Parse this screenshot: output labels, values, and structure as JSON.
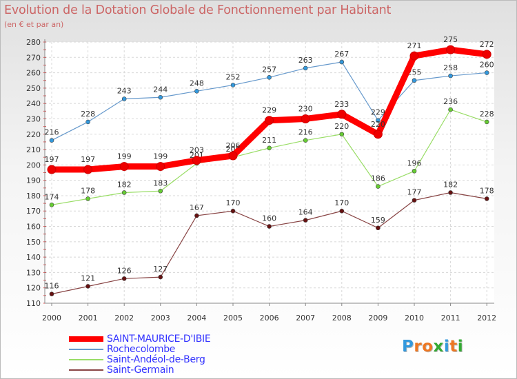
{
  "title": "Evolution de la Dotation Globale de Fonctionnement par Habitant",
  "subtitle": "(en € et par an)",
  "logo": {
    "chars": [
      "P",
      "r",
      "o",
      "x",
      "i",
      "t",
      "i"
    ],
    "colors": [
      "#3399dd",
      "#ee7722",
      "#ee7722",
      "#33aa33",
      "#3399dd",
      "#ee7722",
      "#33aa33"
    ]
  },
  "chart_data": {
    "type": "line",
    "title": "Evolution de la Dotation Globale de Fonctionnement par Habitant",
    "subtitle": "(en € et par an)",
    "xlabel": "",
    "ylabel": "",
    "categories": [
      "2000",
      "2001",
      "2002",
      "2003",
      "2004",
      "2005",
      "2006",
      "2007",
      "2008",
      "2009",
      "2010",
      "2011",
      "2012"
    ],
    "ylim": [
      110,
      280
    ],
    "yticks": [
      110,
      120,
      130,
      140,
      150,
      160,
      170,
      180,
      190,
      200,
      210,
      220,
      230,
      240,
      250,
      260,
      270,
      280
    ],
    "grid": true,
    "legend_position": "bottom-left",
    "series": [
      {
        "name": "Rochecolombe",
        "color": "#6699cc",
        "marker": "#3399dd",
        "values": [
          216,
          228,
          243,
          244,
          248,
          252,
          257,
          263,
          267,
          229,
          255,
          258,
          260
        ]
      },
      {
        "name": "Saint-Andéol-de-Berg",
        "color": "#99dd66",
        "marker": "#66cc33",
        "values": [
          174,
          178,
          182,
          183,
          201,
          205,
          211,
          216,
          220,
          186,
          196,
          236,
          228
        ]
      },
      {
        "name": "Saint-Germain",
        "color": "#884444",
        "marker": "#661111",
        "values": [
          116,
          121,
          126,
          127,
          167,
          170,
          160,
          164,
          170,
          159,
          177,
          182,
          178
        ]
      },
      {
        "name": "SAINT-MAURICE-D'IBIE",
        "color": "#ff0000",
        "marker": "#ee0000",
        "values": [
          197,
          197,
          199,
          199,
          203,
          206,
          229,
          230,
          233,
          220,
          271,
          275,
          272
        ]
      }
    ],
    "legend": [
      "SAINT-MAURICE-D'IBIE",
      "Rochecolombe",
      "Saint-Andéol-de-Berg",
      "Saint-Germain"
    ]
  }
}
